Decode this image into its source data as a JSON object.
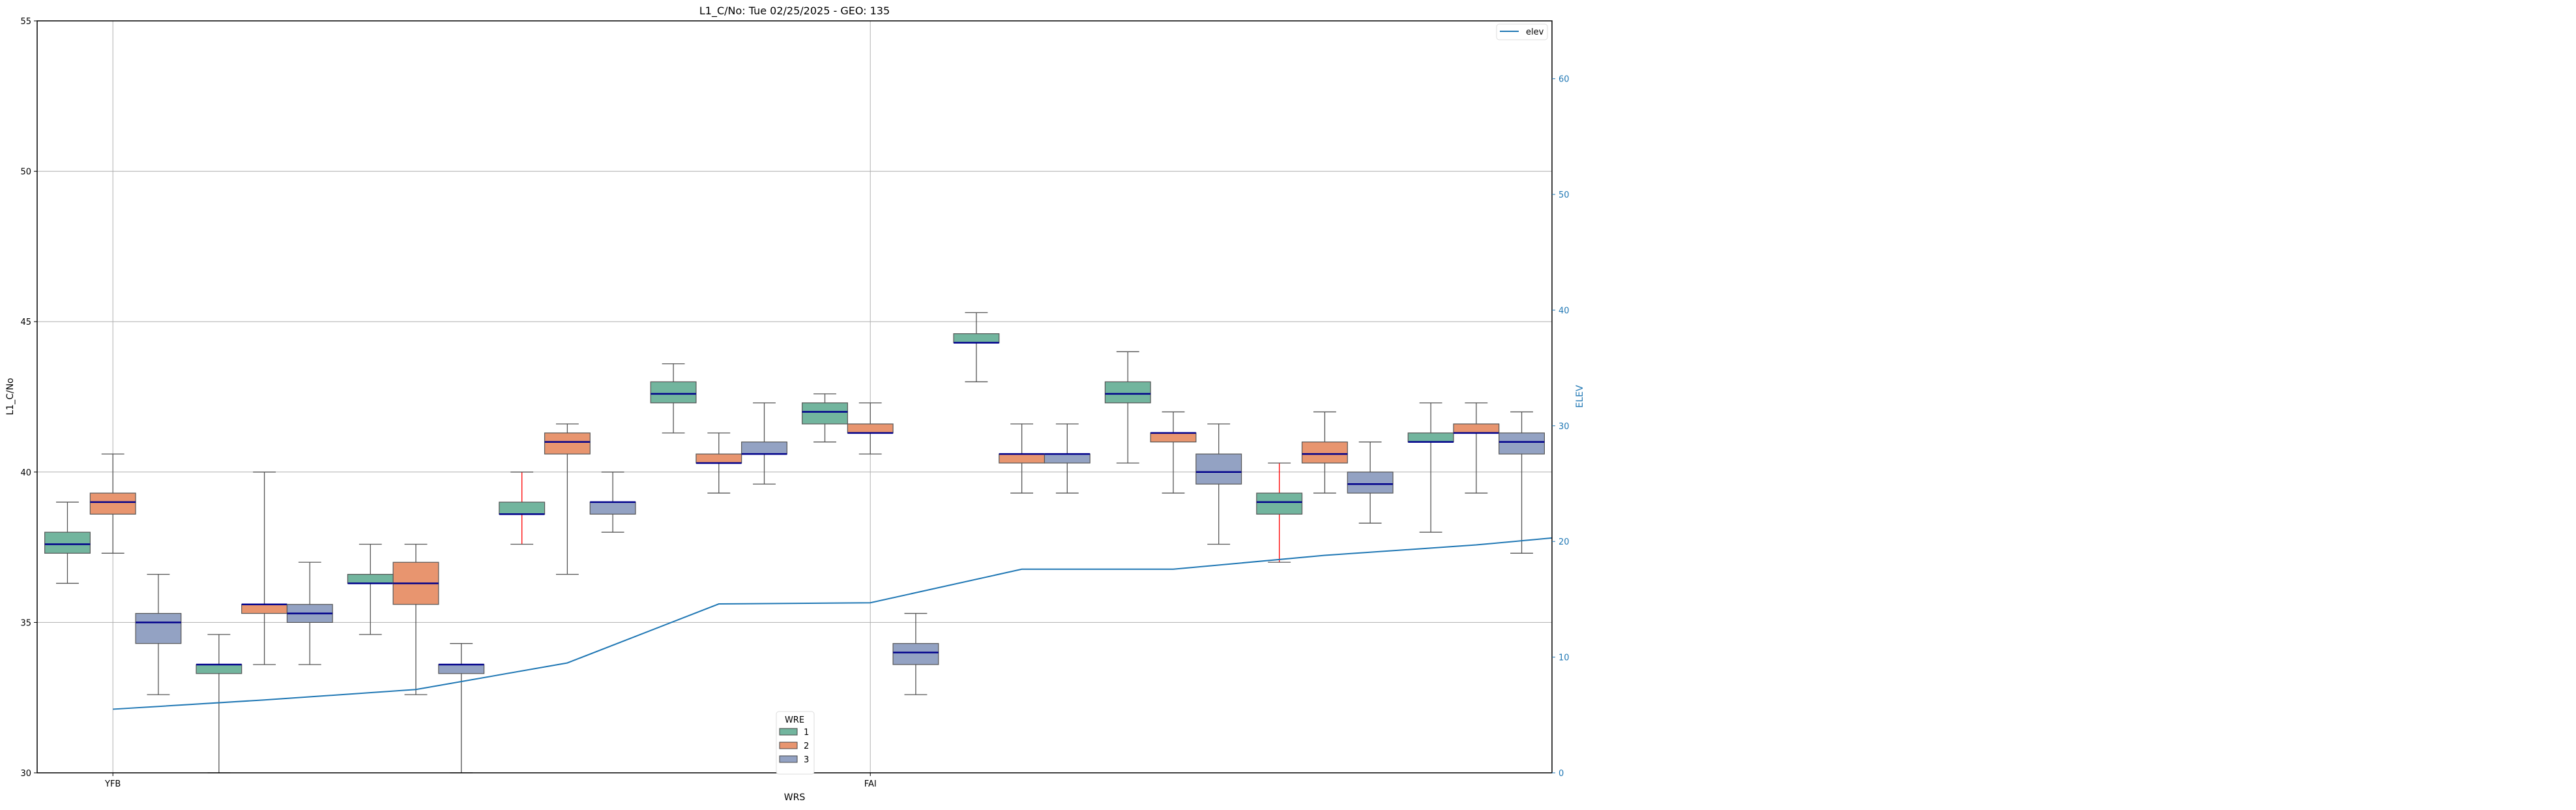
{
  "chart_data": {
    "type": "box",
    "title": "L1_C/No: Tue 02/25/2025 - GEO: 135",
    "xlabel": "WRS",
    "ylabel": "L1_C/No",
    "y2label": "ELEV",
    "ylim": [
      30,
      55
    ],
    "y2lim": [
      0,
      65
    ],
    "xlim": [
      -0.5,
      9.5
    ],
    "yticks": [
      30,
      35,
      40,
      45,
      50,
      55
    ],
    "y2ticks": [
      0,
      10,
      20,
      30,
      40,
      50,
      60
    ],
    "xticks": [
      {
        "pos": 0,
        "label": "YFB"
      },
      {
        "pos": 5,
        "label": "FAI"
      }
    ],
    "grid": true,
    "hue_legend": {
      "title": "WRE",
      "placement": "lower-center",
      "entries": [
        "1",
        "2",
        "3"
      ]
    },
    "line_legend": {
      "placement": "top-right",
      "entries": [
        "elev"
      ]
    },
    "colors": {
      "1": "#72b59e",
      "2": "#e8956f",
      "3": "#93a2c3",
      "median": "#00008b",
      "elev": "#1f77b4",
      "whisker": "#555555",
      "whisker_alt": "#ff0000"
    },
    "series": [
      {
        "name": "1",
        "boxes": [
          {
            "min": 36.3,
            "q1": 37.3,
            "median": 37.6,
            "q3": 38.0,
            "max": 39.0
          },
          {
            "min": 30.0,
            "q1": 33.3,
            "median": 33.6,
            "q3": 33.6,
            "max": 34.6
          },
          {
            "min": 34.6,
            "q1": 36.3,
            "median": 36.3,
            "q3": 36.6,
            "max": 37.6
          },
          {
            "min": 37.6,
            "q1": 38.6,
            "median": 38.6,
            "q3": 39.0,
            "max": 40.0,
            "whisker": "alt"
          },
          {
            "min": 41.3,
            "q1": 42.3,
            "median": 42.6,
            "q3": 43.0,
            "max": 43.6
          },
          {
            "min": 41.0,
            "q1": 41.6,
            "median": 42.0,
            "q3": 42.3,
            "max": 42.6
          },
          {
            "min": 43.0,
            "q1": 44.3,
            "median": 44.3,
            "q3": 44.6,
            "max": 45.3
          },
          {
            "min": 40.3,
            "q1": 42.3,
            "median": 42.6,
            "q3": 43.0,
            "max": 44.0
          },
          {
            "min": 37.0,
            "q1": 38.6,
            "median": 39.0,
            "q3": 39.3,
            "max": 40.3,
            "whisker": "alt"
          },
          {
            "min": 38.0,
            "q1": 41.0,
            "median": 41.0,
            "q3": 41.3,
            "max": 42.3
          }
        ]
      },
      {
        "name": "2",
        "boxes": [
          {
            "min": 37.3,
            "q1": 38.6,
            "median": 39.0,
            "q3": 39.3,
            "max": 40.6
          },
          {
            "min": 33.6,
            "q1": 35.3,
            "median": 35.6,
            "q3": 35.6,
            "max": 40.0
          },
          {
            "min": 32.6,
            "q1": 35.6,
            "median": 36.3,
            "q3": 37.0,
            "max": 37.6
          },
          {
            "min": 36.6,
            "q1": 40.6,
            "median": 41.0,
            "q3": 41.3,
            "max": 41.6
          },
          {
            "min": 39.3,
            "q1": 40.3,
            "median": 40.3,
            "q3": 40.6,
            "max": 41.3
          },
          {
            "min": 40.6,
            "q1": 41.3,
            "median": 41.3,
            "q3": 41.6,
            "max": 42.3
          },
          {
            "min": 39.3,
            "q1": 40.3,
            "median": 40.6,
            "q3": 40.6,
            "max": 41.6
          },
          {
            "min": 39.3,
            "q1": 41.0,
            "median": 41.3,
            "q3": 41.3,
            "max": 42.0
          },
          {
            "min": 39.3,
            "q1": 40.3,
            "median": 40.6,
            "q3": 41.0,
            "max": 42.0
          },
          {
            "min": 39.3,
            "q1": 41.3,
            "median": 41.3,
            "q3": 41.6,
            "max": 42.3
          }
        ]
      },
      {
        "name": "3",
        "boxes": [
          {
            "min": 32.6,
            "q1": 34.3,
            "median": 35.0,
            "q3": 35.3,
            "max": 36.6
          },
          {
            "min": 33.6,
            "q1": 35.0,
            "median": 35.3,
            "q3": 35.6,
            "max": 37.0
          },
          {
            "min": 30.0,
            "q1": 33.3,
            "median": 33.6,
            "q3": 33.6,
            "max": 34.3
          },
          {
            "min": 38.0,
            "q1": 38.6,
            "median": 39.0,
            "q3": 39.0,
            "max": 40.0
          },
          {
            "min": 39.6,
            "q1": 40.6,
            "median": 40.6,
            "q3": 41.0,
            "max": 42.3
          },
          {
            "min": 32.6,
            "q1": 33.6,
            "median": 34.0,
            "q3": 34.3,
            "max": 35.3
          },
          {
            "min": 39.3,
            "q1": 40.3,
            "median": 40.6,
            "q3": 40.6,
            "max": 41.6
          },
          {
            "min": 37.6,
            "q1": 39.6,
            "median": 40.0,
            "q3": 40.6,
            "max": 41.6
          },
          {
            "min": 38.3,
            "q1": 39.3,
            "median": 39.6,
            "q3": 40.0,
            "max": 41.0
          },
          {
            "min": 37.3,
            "q1": 40.6,
            "median": 41.0,
            "q3": 41.3,
            "max": 42.0
          }
        ]
      }
    ],
    "elev": {
      "name": "elev",
      "x": [
        0,
        1,
        2,
        3,
        4,
        5,
        6,
        7,
        8,
        9,
        10
      ],
      "y": [
        5.5,
        6.3,
        7.2,
        9.5,
        14.6,
        14.7,
        17.6,
        17.6,
        18.8,
        19.7,
        20.9
      ]
    }
  }
}
